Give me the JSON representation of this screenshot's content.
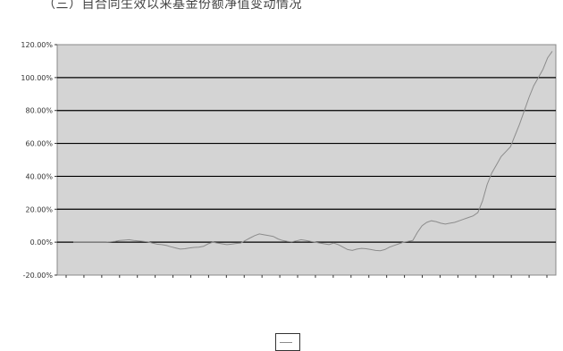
{
  "heading": "（三）自合同生效以来基金份额净值变动情况",
  "chart_data": {
    "type": "line",
    "title": "",
    "xlabel": "",
    "ylabel": "",
    "ylim": [
      -20,
      120
    ],
    "y_ticks": [
      "-20.00%",
      "0.00%",
      "20.00%",
      "40.00%",
      "60.00%",
      "80.00%",
      "100.00%",
      "120.00%"
    ],
    "y_tick_values": [
      -20,
      0,
      20,
      40,
      60,
      80,
      100,
      120
    ],
    "grid": true,
    "legend": "bottom",
    "plot_background": "#d4d4d4",
    "line_color": "#8c8c8c",
    "x_tick_count": 28,
    "series": [
      {
        "name": "",
        "values": [
          0,
          0,
          0,
          0,
          0,
          0,
          0,
          0,
          0.2,
          0.5,
          1.0,
          1.2,
          1.5,
          1.0,
          0.8,
          0.5,
          0.2,
          -0.5,
          -1.2,
          -1.5,
          -2.0,
          -2.8,
          -3.5,
          -4.2,
          -4.0,
          -3.5,
          -3.2,
          -3.0,
          -2.5,
          -1.0,
          0,
          -0.5,
          -1.0,
          -1.5,
          -1.2,
          -0.8,
          -0.5,
          1.0,
          2.5,
          4.0,
          5.0,
          4.5,
          4.0,
          3.5,
          2.0,
          1.0,
          0.5,
          0.2,
          0.8,
          1.5,
          1.0,
          0.5,
          0,
          -0.5,
          -1.0,
          -1.5,
          -0.5,
          -1.5,
          -3.0,
          -4.5,
          -5.0,
          -4.2,
          -3.8,
          -4.0,
          -4.5,
          -5.0,
          -5.2,
          -4.5,
          -3.0,
          -2.0,
          -1.0,
          0,
          0.5,
          1.0,
          6.0,
          10.0,
          12.0,
          13.0,
          12.5,
          11.5,
          11.0,
          11.5,
          12.0,
          13.0,
          14.0,
          15.0,
          16.0,
          18.0,
          25.0,
          35.0,
          42.0,
          47.0,
          52.0,
          55.0,
          58.0,
          65.0,
          72.0,
          80.0,
          88.0,
          95.0,
          100.0,
          105.0,
          112.0,
          116.0
        ]
      }
    ]
  },
  "legend": {
    "label": ""
  }
}
